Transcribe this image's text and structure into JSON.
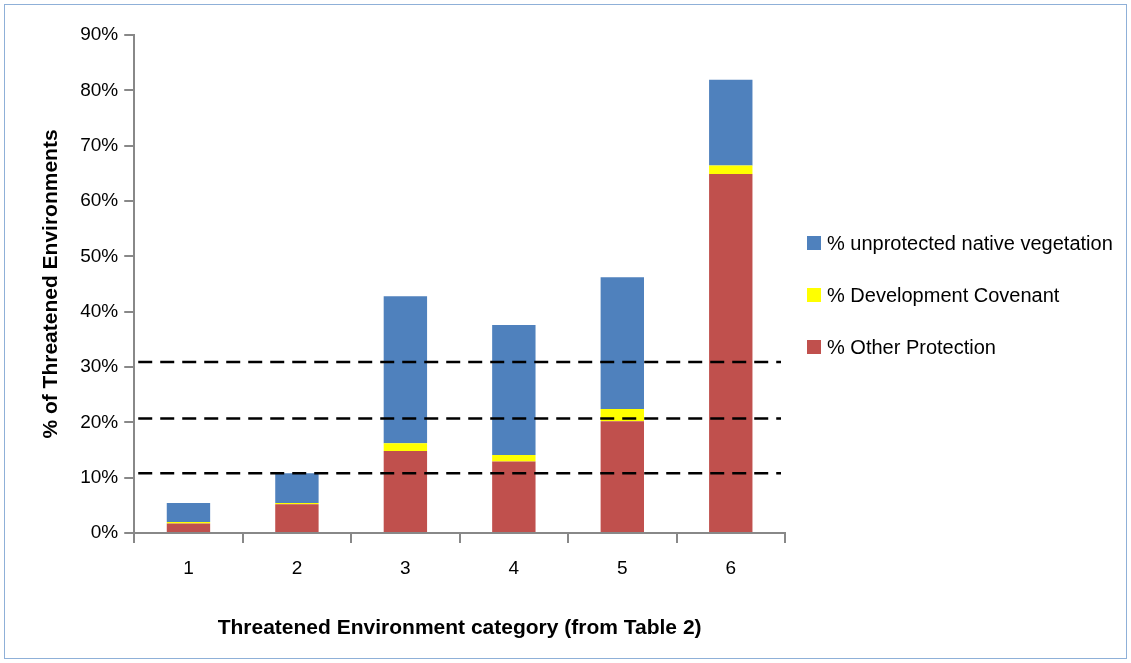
{
  "chart_data": {
    "type": "bar",
    "stacked": true,
    "xlabel": "Threatened Environment category (from Table 2)",
    "ylabel": "% of Threatened Environments",
    "categories": [
      "1",
      "2",
      "3",
      "4",
      "5",
      "6"
    ],
    "series": [
      {
        "name": "% Other Protection",
        "color": "#c0504d",
        "values": [
          1.7,
          5.2,
          14.8,
          12.9,
          20.2,
          64.9
        ]
      },
      {
        "name": "% Development Covenant",
        "color": "#ffff00",
        "values": [
          0.3,
          0.2,
          1.4,
          1.2,
          2.2,
          1.5
        ]
      },
      {
        "name": "% unprotected native vegetation",
        "color": "#4f81bd",
        "values": [
          3.4,
          5.4,
          26.6,
          23.5,
          23.8,
          15.5
        ]
      }
    ],
    "ylim": [
      0,
      90
    ],
    "yticks": [
      {
        "value": 0,
        "label": "0%"
      },
      {
        "value": 10,
        "label": "10%"
      },
      {
        "value": 20,
        "label": "20%"
      },
      {
        "value": 30,
        "label": "30%"
      },
      {
        "value": 40,
        "label": "40%"
      },
      {
        "value": 50,
        "label": "50%"
      },
      {
        "value": 60,
        "label": "60%"
      },
      {
        "value": 70,
        "label": "70%"
      },
      {
        "value": 80,
        "label": "80%"
      },
      {
        "value": 90,
        "label": "90%"
      }
    ],
    "ref_lines": [
      {
        "axis": "y",
        "value": 10.8,
        "color": "#000000",
        "line_style": "dashed"
      },
      {
        "axis": "y",
        "value": 20.7,
        "color": "#000000",
        "line_style": "dashed"
      },
      {
        "axis": "y",
        "value": 30.9,
        "color": "#000000",
        "line_style": "dashed"
      }
    ],
    "grid": false,
    "legend": "right"
  }
}
